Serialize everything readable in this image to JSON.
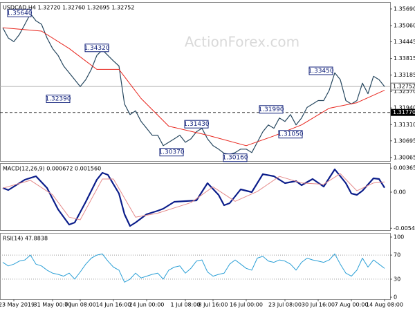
{
  "chart_data": [
    {
      "type": "line",
      "title": "USDCAD,H4  1.32720 1.32760 1.32695 1.32752",
      "watermark": "ActionForex.com",
      "xlim": [
        -0.5,
        70
      ],
      "ylim": [
        1.2993,
        1.3595
      ],
      "yticks": [
        {
          "value": 1.3569,
          "label": "1.35690"
        },
        {
          "value": 1.3506,
          "label": "1.35060"
        },
        1.34445,
        1.33815,
        1.33185,
        {
          "value": 1.3257,
          "label": "1.32570"
        },
        {
          "value": 1.3194,
          "label": "1.31940"
        },
        {
          "value": 1.3131,
          "label": "1.31310"
        },
        1.30695,
        1.30065
      ],
      "series": [
        {
          "name": "USDCAD",
          "color": "#25465e",
          "width": 1.2,
          "values": [
            1.3498,
            1.3459,
            1.3445,
            1.3472,
            1.3511,
            1.3551,
            1.3524,
            1.3511,
            1.3459,
            1.3419,
            1.3393,
            1.3353,
            1.3327,
            1.3301,
            1.3275,
            1.3301,
            1.334,
            1.3393,
            1.3414,
            1.3393,
            1.3372,
            1.3353,
            1.3209,
            1.3169,
            1.3183,
            1.3143,
            1.3117,
            1.3091,
            1.3091,
            1.3051,
            1.3064,
            1.3077,
            1.3091,
            1.3064,
            1.3077,
            1.3104,
            1.3117,
            1.3077,
            1.3051,
            1.3038,
            1.3022,
            1.3018,
            1.3025,
            1.3038,
            1.3038,
            1.3025,
            1.3064,
            1.3104,
            1.313,
            1.3117,
            1.3156,
            1.3143,
            1.3169,
            1.313,
            1.3156,
            1.3196,
            1.3209,
            1.3222,
            1.3222,
            1.3261,
            1.3327,
            1.3301,
            1.3222,
            1.3209,
            1.3222,
            1.3288,
            1.3248,
            1.3314,
            1.3301,
            1.3275
          ]
        },
        {
          "name": "MA",
          "color": "#e8241c",
          "width": 1,
          "x": [
            0,
            7,
            12,
            17,
            21,
            25,
            30,
            37,
            44,
            49,
            54,
            59,
            64,
            69
          ],
          "values": [
            1.3498,
            1.3485,
            1.3419,
            1.334,
            1.334,
            1.323,
            1.3125,
            1.3091,
            1.3051,
            1.3088,
            1.313,
            1.3193,
            1.3214,
            1.3261
          ]
        }
      ],
      "last": {
        "value": 1.32752,
        "label": "1.32752"
      },
      "levels": [
        {
          "value": 1.3177,
          "label": "1.31770"
        }
      ],
      "annotations": [
        {
          "x": 3,
          "value": 1.3564,
          "label": "1.35640"
        },
        {
          "x": 17,
          "value": 1.3432,
          "label": "1.34320"
        },
        {
          "x": 10,
          "value": 1.3239,
          "label": "1.32390"
        },
        {
          "x": 35,
          "value": 1.3143,
          "label": "1.31430"
        },
        {
          "x": 30.5,
          "value": 1.3037,
          "label": "1.30370"
        },
        {
          "x": 42,
          "value": 1.3016,
          "label": "1.30160"
        },
        {
          "x": 48.5,
          "value": 1.3199,
          "label": "1.31990"
        },
        {
          "x": 52,
          "value": 1.3105,
          "label": "1.31050"
        },
        {
          "x": 57.5,
          "value": 1.3345,
          "label": "1.33450"
        }
      ]
    },
    {
      "type": "line",
      "title": "MACD(12,26,9) 0.000672 0.001560",
      "xlim": [
        -0.5,
        70
      ],
      "ylim": [
        -0.005777,
        0.004412
      ],
      "yticks": [
        0.003651,
        {
          "value": 0,
          "label": "0.00"
        },
        -0.005489
      ],
      "series": [
        {
          "name": "MACD",
          "color": "#0b1d8a",
          "width": 2.2,
          "x": [
            0,
            1,
            2,
            4,
            6,
            8,
            10,
            12,
            13,
            15,
            17,
            18,
            19,
            21,
            22,
            23,
            24,
            26,
            28,
            29,
            31,
            33,
            35,
            37,
            39,
            40,
            41,
            43,
            45,
            47,
            49,
            51,
            53,
            54,
            56,
            58,
            60,
            62,
            63,
            64,
            65,
            67,
            68,
            69
          ],
          "values": [
            0.00063,
            0.000315,
            0.00084,
            0.001891,
            0.002416,
            0.00063,
            -0.002626,
            -0.004937,
            -0.004622,
            -0.001471,
            0.001891,
            0.002941,
            0.002626,
            -0.00021,
            -0.003361,
            -0.005147,
            -0.004622,
            -0.003361,
            -0.002836,
            -0.002521,
            -0.001471,
            -0.001366,
            -0.001261,
            0.001366,
            -0.00042,
            -0.001996,
            -0.001681,
            0.00042,
            0,
            0.002731,
            0.002416,
            0.001366,
            0.001681,
            0.00105,
            0.001996,
            0.00084,
            0.003466,
            0.001366,
            -0.00021,
            -0.00042,
            0.00021,
            0.002101,
            0.001996,
            0.000672
          ]
        },
        {
          "name": "Signal",
          "color": "#e58a8a",
          "width": 1,
          "x": [
            0,
            5,
            9,
            12,
            14,
            18,
            20,
            24,
            28,
            34,
            38,
            42,
            46,
            50,
            54,
            58,
            61,
            64,
            67,
            69
          ],
          "values": [
            0.0006,
            0.0018,
            -0.0004,
            -0.0038,
            -0.0042,
            0.002,
            0.002,
            -0.0038,
            -0.0032,
            -0.0016,
            0.0008,
            -0.0014,
            0.0001,
            0.0024,
            0.0014,
            0.0012,
            0.0028,
            0.0002,
            0.0014,
            0.00156
          ]
        }
      ]
    },
    {
      "type": "line",
      "title": "RSI(14) 47.8838",
      "xlim": [
        -0.5,
        70
      ],
      "ylim": [
        -3.4,
        106.9
      ],
      "yticks": [
        100,
        70,
        30,
        0
      ],
      "levels": [
        {
          "value": 70
        },
        {
          "value": 30
        }
      ],
      "series": [
        {
          "name": "RSI",
          "color": "#2a9fd6",
          "width": 1,
          "values": [
            58,
            52,
            55,
            60,
            62,
            70,
            55,
            52,
            45,
            40,
            38,
            35,
            40,
            30,
            42,
            55,
            65,
            70,
            72,
            60,
            50,
            45,
            25,
            30,
            40,
            32,
            35,
            38,
            40,
            30,
            45,
            50,
            52,
            40,
            48,
            60,
            62,
            42,
            35,
            38,
            40,
            55,
            62,
            55,
            48,
            45,
            65,
            68,
            60,
            58,
            62,
            60,
            55,
            45,
            58,
            65,
            62,
            60,
            58,
            62,
            72,
            55,
            40,
            35,
            45,
            65,
            50,
            62,
            55,
            47.8838
          ]
        }
      ],
      "xticks": [
        {
          "value": 2,
          "label": "23 May 2019"
        },
        {
          "value": 9,
          "label": "31 May 00:00"
        },
        {
          "value": 14,
          "label": "7 Jun 08:00"
        },
        {
          "value": 20,
          "label": "14 Jun 16:00"
        },
        {
          "value": 26,
          "label": "24 Jun 00:00"
        },
        {
          "value": 33,
          "label": "1 Jul 08:00"
        },
        {
          "value": 38,
          "label": "8 Jul 16:00"
        },
        {
          "value": 44,
          "label": "16 Jul 00:00"
        },
        {
          "value": 51,
          "label": "23 Jul 08:00"
        },
        {
          "value": 57,
          "label": "30 Jul 16:00"
        },
        {
          "value": 63,
          "label": "7 Aug 00:00"
        },
        {
          "value": 69,
          "label": "14 Aug 08:00"
        }
      ]
    }
  ]
}
